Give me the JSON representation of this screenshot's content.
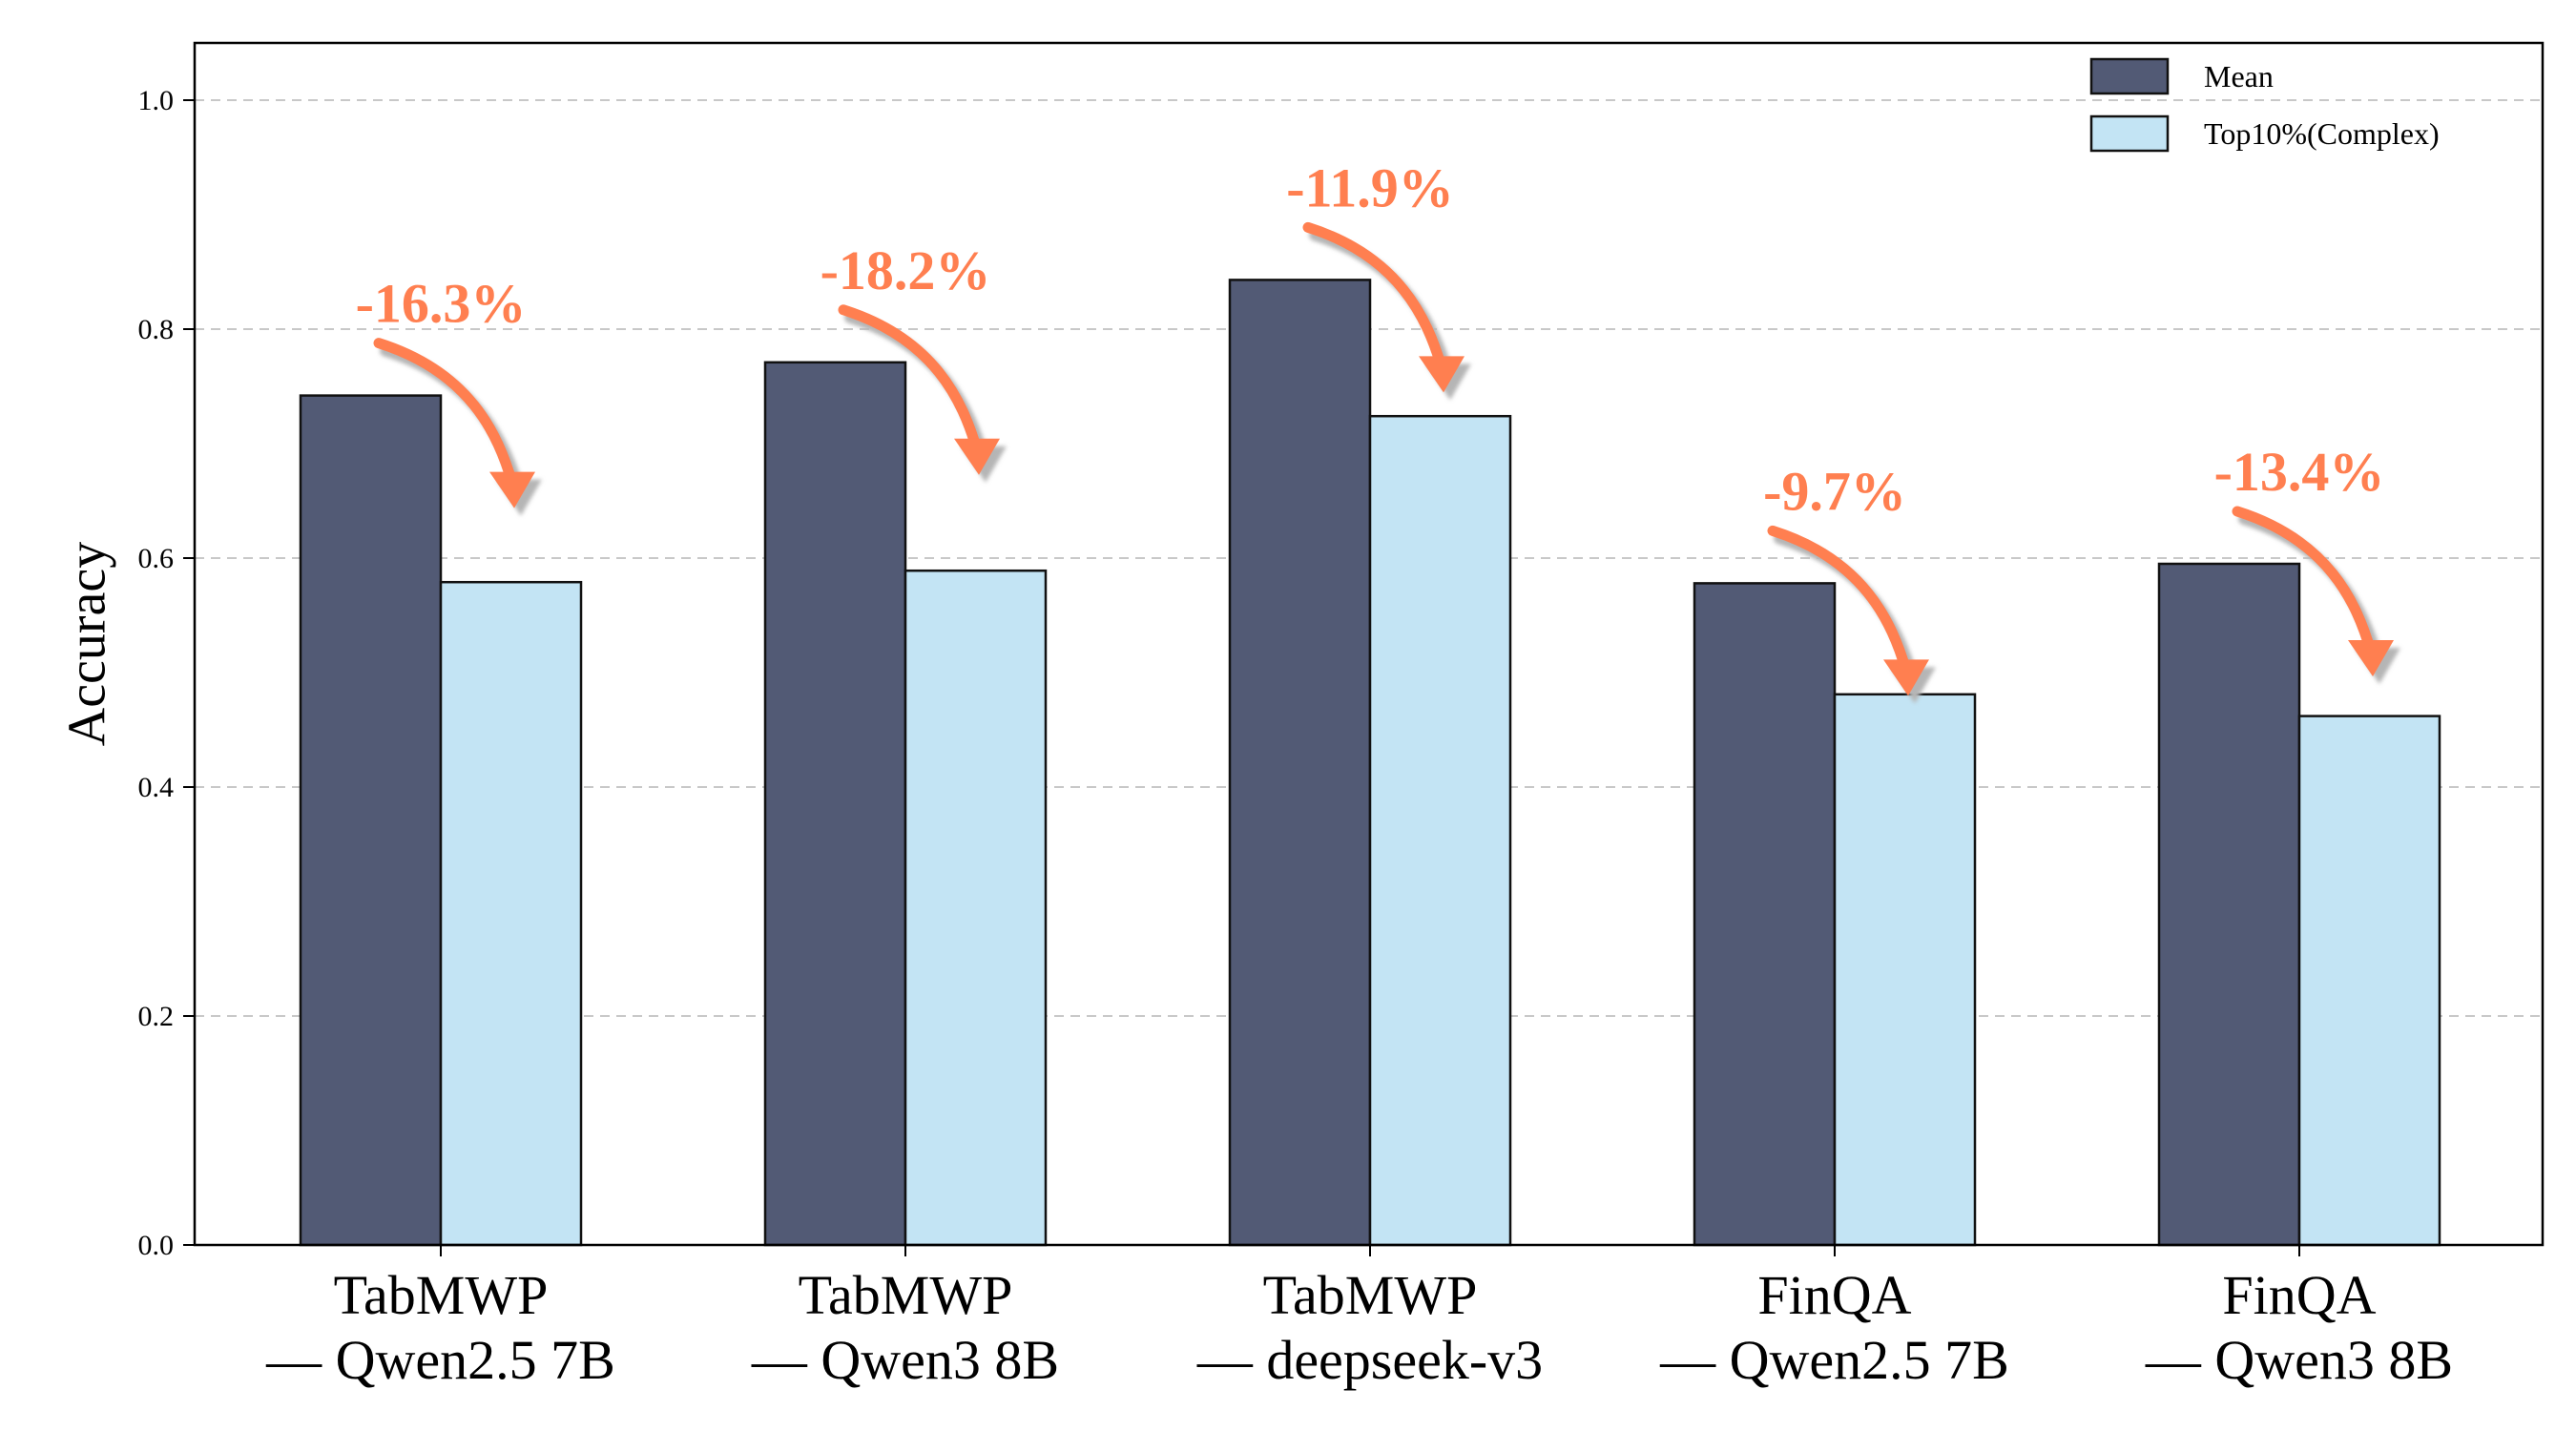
{
  "chart_data": {
    "type": "bar",
    "ylabel": "Accuracy",
    "xlabel": "",
    "ylim": [
      0,
      1.05
    ],
    "yticks": [
      "0.0",
      "0.2",
      "0.4",
      "0.6",
      "0.8",
      "1.0"
    ],
    "grid": "horizontal dashed",
    "legend_position": "top-right",
    "categories": [
      {
        "line1": "TabMWP",
        "line2": "— Qwen2.5 7B"
      },
      {
        "line1": "TabMWP",
        "line2": "— Qwen3 8B"
      },
      {
        "line1": "TabMWP",
        "line2": "— deepseek-v3"
      },
      {
        "line1": "FinQA",
        "line2": "— Qwen2.5 7B"
      },
      {
        "line1": "FinQA",
        "line2": "— Qwen3 8B"
      }
    ],
    "series": [
      {
        "name": "Mean",
        "color": "#525a75",
        "values": [
          0.742,
          0.771,
          0.843,
          0.578,
          0.595
        ]
      },
      {
        "name": "Top10%(Complex)",
        "color": "#c3e4f4",
        "values": [
          0.579,
          0.589,
          0.724,
          0.481,
          0.462
        ]
      }
    ],
    "annotations": {
      "color": "#ff7f50",
      "labels": [
        "-16.3%",
        "-18.2%",
        "-11.9%",
        "-9.7%",
        "-13.4%"
      ]
    }
  }
}
